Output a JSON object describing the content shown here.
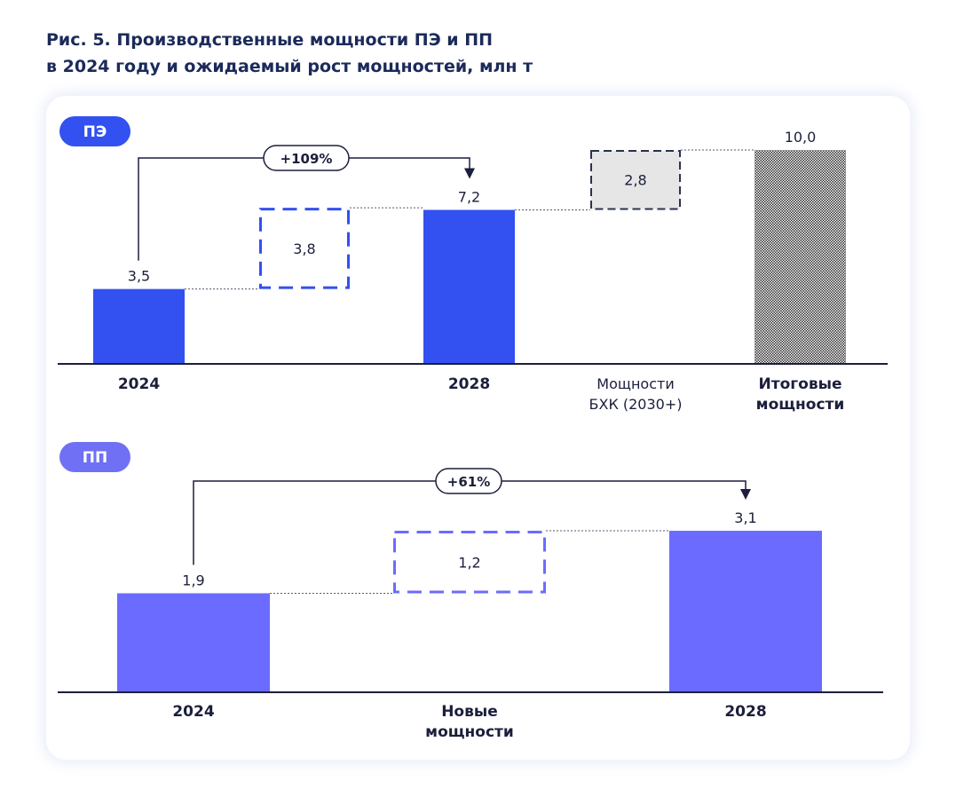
{
  "title": {
    "line1": "Рис. 5. Производственные мощности ПЭ и ПП",
    "line2": "в 2024 году и ожидаемый рост мощностей, млн т"
  },
  "colors": {
    "pe": "#3350f0",
    "pp": "#6b6bff",
    "pe_badge": "#3350f0",
    "pp_badge": "#7070f5",
    "gray_box": "#e6e6e6",
    "dark_box_border": "#2b3150",
    "text": "#1b1f3b"
  },
  "chart_data": [
    {
      "type": "bar",
      "badge": "ПЭ",
      "chart_kind": "waterfall",
      "categories": [
        "2024",
        "",
        "2028",
        "Мощности БХК (2030+)",
        "Итоговые мощности"
      ],
      "category_lines": [
        [
          "2024"
        ],
        [],
        [
          "2028"
        ],
        [
          "Мощности",
          "БХК (2030+)"
        ],
        [
          "Итоговые",
          "мощности"
        ]
      ],
      "bars": [
        {
          "kind": "total",
          "base": 0,
          "value": 3.5,
          "label": "3,5",
          "style": "solid"
        },
        {
          "kind": "increment",
          "base": 3.5,
          "value": 3.8,
          "label": "3,8",
          "style": "dashed"
        },
        {
          "kind": "total",
          "base": 0,
          "value": 7.2,
          "label": "7,2",
          "style": "solid"
        },
        {
          "kind": "increment",
          "base": 7.2,
          "value": 2.8,
          "label": "2,8",
          "style": "gray-dashed"
        },
        {
          "kind": "total",
          "base": 0,
          "value": 10.0,
          "label": "10,0",
          "style": "hatched"
        }
      ],
      "growth": {
        "label": "+109%",
        "from": "2024",
        "to": "2028"
      },
      "ylim": [
        0,
        10
      ]
    },
    {
      "type": "bar",
      "badge": "ПП",
      "chart_kind": "waterfall",
      "categories": [
        "2024",
        "Новые мощности",
        "2028"
      ],
      "category_lines": [
        [
          "2024"
        ],
        [
          "Новые",
          "мощности"
        ],
        [
          "2028"
        ]
      ],
      "bars": [
        {
          "kind": "total",
          "base": 0,
          "value": 1.9,
          "label": "1,9",
          "style": "solid"
        },
        {
          "kind": "increment",
          "base": 1.9,
          "value": 1.2,
          "label": "1,2",
          "style": "dashed"
        },
        {
          "kind": "total",
          "base": 0,
          "value": 3.1,
          "label": "3,1",
          "style": "solid"
        }
      ],
      "growth": {
        "label": "+61%",
        "from": "2024",
        "to": "2028"
      },
      "ylim": [
        0,
        3.1
      ]
    }
  ]
}
